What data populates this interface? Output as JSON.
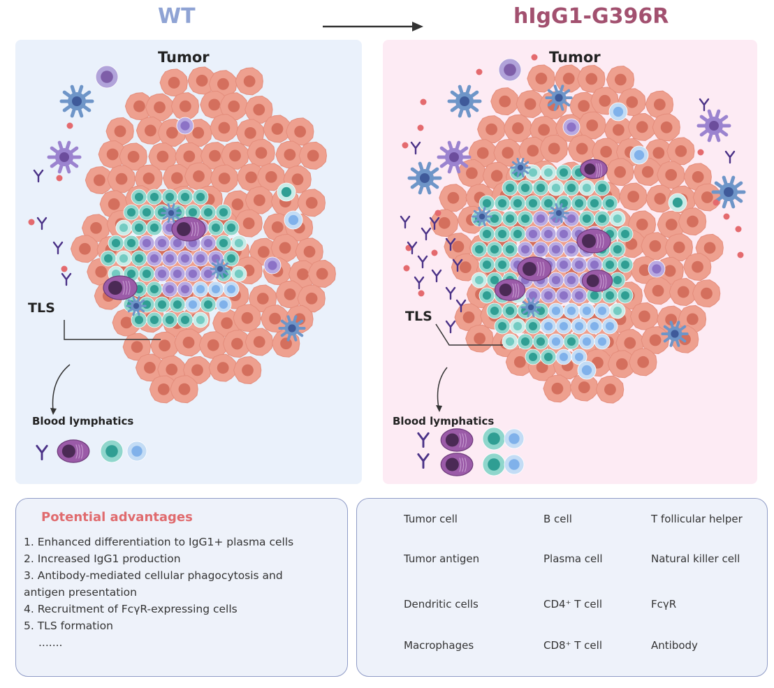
{
  "titles": {
    "left": "WT",
    "right": "hIgG1-G396R"
  },
  "colors": {
    "wt": "#8fa3d4",
    "mutant": "#a2506f",
    "left_bg": "#eaf1fb",
    "right_bg": "#fdebf4",
    "advantage_title": "#e06b6e"
  },
  "left_panel": {
    "tumor_label": "Tumor",
    "tls_label": "TLS",
    "blood_label": "Blood lymphatics"
  },
  "right_panel": {
    "tumor_label": "Tumor",
    "tls_label": "TLS",
    "blood_label": "Blood lymphatics"
  },
  "advantages": {
    "title": "Potential advantages",
    "items": [
      "1. Enhanced differentiation to IgG1+ plasma cells",
      "2. Increased IgG1 production",
      "3. Antibody-mediated cellular phagocytosis and",
      "antigen presentation",
      "4. Recruitment of FcγR-expressing cells",
      "5. TLS formation",
      "......."
    ]
  },
  "legend": {
    "items": [
      {
        "label": "Tumor cell",
        "icon": "tumor-cell"
      },
      {
        "label": "B cell",
        "icon": "b-cell"
      },
      {
        "label": "T follicular helper",
        "icon": "tfh-cell"
      },
      {
        "label": "Tumor antigen",
        "icon": "tumor-antigen"
      },
      {
        "label": "Plasma cell",
        "icon": "plasma-cell"
      },
      {
        "label": "Natural killer cell",
        "icon": "nk-cell"
      },
      {
        "label": "Dendritic cells",
        "icon": "dendritic-cell"
      },
      {
        "label": "CD4⁺ T cell",
        "icon": "cd4-t-cell"
      },
      {
        "label": "FcγR",
        "icon": "fcgr"
      },
      {
        "label": "Macrophages",
        "icon": "macrophage"
      },
      {
        "label": "CD8⁺ T cell",
        "icon": "cd8-t-cell"
      },
      {
        "label": "Antibody",
        "icon": "antibody"
      }
    ]
  }
}
